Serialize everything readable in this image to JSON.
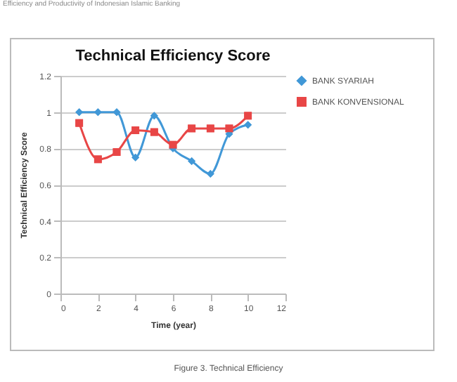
{
  "chart_data": {
    "type": "line",
    "title": "Technical Efficiency Score",
    "xlabel": "Time (year)",
    "ylabel": "Technical Efficiency Score",
    "x": [
      1,
      2,
      3,
      4,
      5,
      6,
      7,
      8,
      9,
      10
    ],
    "series": [
      {
        "name": "BANK SYARIAH",
        "color": "#4198d7",
        "marker": "diamond",
        "values": [
          1,
          1,
          1,
          0.75,
          0.98,
          0.8,
          0.73,
          0.66,
          0.88,
          0.93
        ]
      },
      {
        "name": "BANK KONVENSIONAL",
        "color": "#e84646",
        "marker": "square",
        "values": [
          0.94,
          0.74,
          0.78,
          0.9,
          0.89,
          0.82,
          0.91,
          0.91,
          0.91,
          0.98
        ]
      }
    ],
    "xlim": [
      0,
      12
    ],
    "xticks": [
      0,
      2,
      4,
      6,
      8,
      10,
      12
    ],
    "ylim": [
      0,
      1.2
    ],
    "yticks": [
      0,
      0.2,
      0.4,
      0.6,
      0.8,
      1,
      1.2
    ],
    "grid": "y",
    "legend": "right",
    "annotations": [
      "Efficiency and Productivity of Indonesian Islamic Banking",
      "Figure 3. Technical Efficiency"
    ]
  }
}
